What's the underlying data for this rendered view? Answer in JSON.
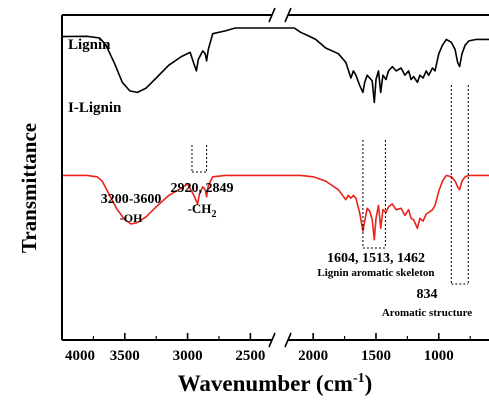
{
  "chart_data": {
    "type": "line",
    "xlabel": "Wavenumber (cm",
    "xlabel_sup": "-1",
    "xlabel_close": ")",
    "ylabel": "Transmittance",
    "x_reversed": true,
    "xlim": [
      4000,
      600
    ],
    "x_ticks": [
      "4000",
      "3500",
      "3000",
      "2500",
      "2000",
      "1500",
      "1000"
    ],
    "y_ticks": "none",
    "axis_break_x": [
      2500,
      2200
    ],
    "grid": false,
    "series": [
      {
        "name": "Lignin",
        "color": "#000000",
        "points": [
          [
            4000,
            0.06
          ],
          [
            3800,
            0.058
          ],
          [
            3700,
            0.07
          ],
          [
            3650,
            0.12
          ],
          [
            3580,
            0.25
          ],
          [
            3520,
            0.38
          ],
          [
            3460,
            0.44
          ],
          [
            3400,
            0.45
          ],
          [
            3330,
            0.42
          ],
          [
            3250,
            0.35
          ],
          [
            3150,
            0.26
          ],
          [
            3050,
            0.2
          ],
          [
            2980,
            0.17
          ],
          [
            2950,
            0.25
          ],
          [
            2930,
            0.3
          ],
          [
            2915,
            0.22
          ],
          [
            2880,
            0.16
          ],
          [
            2860,
            0.18
          ],
          [
            2849,
            0.23
          ],
          [
            2835,
            0.15
          ],
          [
            2800,
            0.04
          ],
          [
            2700,
            0.02
          ],
          [
            2620,
            0.0
          ],
          [
            2560,
            0.0
          ],
          [
            2250,
            0.0
          ],
          [
            2150,
            0.0
          ],
          [
            2100,
            0.03
          ],
          [
            2050,
            0.05
          ],
          [
            1980,
            0.08
          ],
          [
            1900,
            0.14
          ],
          [
            1800,
            0.18
          ],
          [
            1740,
            0.24
          ],
          [
            1700,
            0.35
          ],
          [
            1680,
            0.3
          ],
          [
            1660,
            0.33
          ],
          [
            1630,
            0.4
          ],
          [
            1604,
            0.45
          ],
          [
            1590,
            0.38
          ],
          [
            1570,
            0.33
          ],
          [
            1550,
            0.35
          ],
          [
            1530,
            0.37
          ],
          [
            1513,
            0.52
          ],
          [
            1500,
            0.36
          ],
          [
            1480,
            0.3
          ],
          [
            1462,
            0.45
          ],
          [
            1445,
            0.33
          ],
          [
            1420,
            0.36
          ],
          [
            1400,
            0.3
          ],
          [
            1370,
            0.27
          ],
          [
            1340,
            0.3
          ],
          [
            1300,
            0.28
          ],
          [
            1270,
            0.33
          ],
          [
            1240,
            0.3
          ],
          [
            1220,
            0.36
          ],
          [
            1200,
            0.34
          ],
          [
            1170,
            0.38
          ],
          [
            1150,
            0.33
          ],
          [
            1125,
            0.35
          ],
          [
            1100,
            0.3
          ],
          [
            1080,
            0.33
          ],
          [
            1050,
            0.28
          ],
          [
            1030,
            0.3
          ],
          [
            1000,
            0.18
          ],
          [
            970,
            0.12
          ],
          [
            940,
            0.08
          ],
          [
            900,
            0.1
          ],
          [
            870,
            0.15
          ],
          [
            850,
            0.24
          ],
          [
            834,
            0.27
          ],
          [
            815,
            0.18
          ],
          [
            790,
            0.12
          ],
          [
            760,
            0.09
          ],
          [
            700,
            0.08
          ],
          [
            600,
            0.08
          ]
        ]
      },
      {
        "name": "I-Lignin",
        "color": "#e8241c",
        "points": [
          [
            4000,
            0.52
          ],
          [
            3800,
            0.52
          ],
          [
            3720,
            0.53
          ],
          [
            3680,
            0.56
          ],
          [
            3620,
            0.66
          ],
          [
            3560,
            0.76
          ],
          [
            3500,
            0.83
          ],
          [
            3450,
            0.86
          ],
          [
            3400,
            0.85
          ],
          [
            3330,
            0.81
          ],
          [
            3250,
            0.74
          ],
          [
            3150,
            0.66
          ],
          [
            3050,
            0.61
          ],
          [
            3000,
            0.58
          ],
          [
            2950,
            0.66
          ],
          [
            2920,
            0.72
          ],
          [
            2905,
            0.65
          ],
          [
            2880,
            0.6
          ],
          [
            2860,
            0.62
          ],
          [
            2849,
            0.67
          ],
          [
            2835,
            0.59
          ],
          [
            2800,
            0.53
          ],
          [
            2700,
            0.52
          ],
          [
            2600,
            0.52
          ],
          [
            2500,
            0.52
          ],
          [
            2200,
            0.52
          ],
          [
            2100,
            0.52
          ],
          [
            2000,
            0.53
          ],
          [
            1900,
            0.56
          ],
          [
            1800,
            0.62
          ],
          [
            1740,
            0.69
          ],
          [
            1720,
            0.66
          ],
          [
            1700,
            0.68
          ],
          [
            1680,
            0.66
          ],
          [
            1660,
            0.68
          ],
          [
            1630,
            0.78
          ],
          [
            1604,
            0.91
          ],
          [
            1590,
            0.84
          ],
          [
            1570,
            0.75
          ],
          [
            1550,
            0.77
          ],
          [
            1530,
            0.83
          ],
          [
            1513,
            0.97
          ],
          [
            1500,
            0.82
          ],
          [
            1480,
            0.73
          ],
          [
            1462,
            0.89
          ],
          [
            1445,
            0.76
          ],
          [
            1420,
            0.78
          ],
          [
            1400,
            0.74
          ],
          [
            1370,
            0.72
          ],
          [
            1340,
            0.76
          ],
          [
            1300,
            0.75
          ],
          [
            1270,
            0.8
          ],
          [
            1240,
            0.76
          ],
          [
            1220,
            0.82
          ],
          [
            1200,
            0.83
          ],
          [
            1170,
            0.89
          ],
          [
            1150,
            0.82
          ],
          [
            1125,
            0.84
          ],
          [
            1100,
            0.79
          ],
          [
            1080,
            0.78
          ],
          [
            1050,
            0.76
          ],
          [
            1030,
            0.73
          ],
          [
            1000,
            0.63
          ],
          [
            970,
            0.56
          ],
          [
            940,
            0.52
          ],
          [
            900,
            0.53
          ],
          [
            870,
            0.56
          ],
          [
            850,
            0.6
          ],
          [
            834,
            0.62
          ],
          [
            815,
            0.56
          ],
          [
            790,
            0.53
          ],
          [
            760,
            0.52
          ],
          [
            700,
            0.52
          ],
          [
            600,
            0.52
          ]
        ]
      }
    ],
    "annotations": [
      {
        "id": "oh",
        "line1": "3200-3600",
        "line2": "-OH",
        "x": 3450,
        "lines_at": []
      },
      {
        "id": "ch2",
        "line1": "2920, 2849",
        "line2": "-CH",
        "line2_sub": "2",
        "x": 2885,
        "lines_at": [
          2965,
          2849
        ]
      },
      {
        "id": "aromatic-skeleton",
        "line1": "1604, 1513, 1462",
        "line2": "Lignin aromatic skeleton",
        "x": 1500,
        "lines_at": [
          1604,
          1425
        ]
      },
      {
        "id": "aromatic-structure",
        "line1": "834",
        "line2": "Aromatic structure",
        "x": 830,
        "lines_at": [
          900,
          765
        ]
      }
    ]
  },
  "colors": {
    "axis": "#000000",
    "lignin": "#000000",
    "i_lignin": "#e8241c"
  }
}
